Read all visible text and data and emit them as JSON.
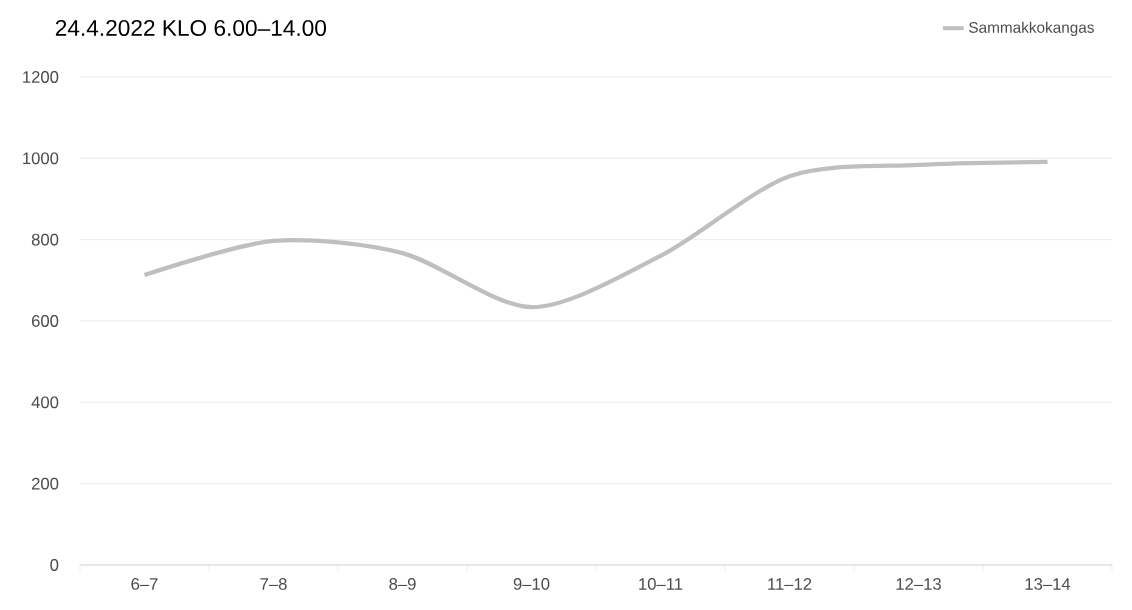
{
  "chart_data": {
    "type": "line",
    "title": "24.4.2022 KLO 6.00–14.00",
    "categories": [
      "6–7",
      "7–8",
      "8–9",
      "9–10",
      "10–11",
      "11–12",
      "12–13",
      "13–14"
    ],
    "series": [
      {
        "name": "Sammakkokangas",
        "color": "#bfbfbf",
        "values": [
          713,
          797,
          767,
          634,
          760,
          956,
          984,
          991
        ]
      }
    ],
    "ylim": [
      0,
      1200
    ],
    "yticks": [
      0,
      200,
      400,
      600,
      800,
      1000,
      1200
    ],
    "grid": "y",
    "legend": "top right",
    "marker": "none",
    "line_style": "solid"
  }
}
